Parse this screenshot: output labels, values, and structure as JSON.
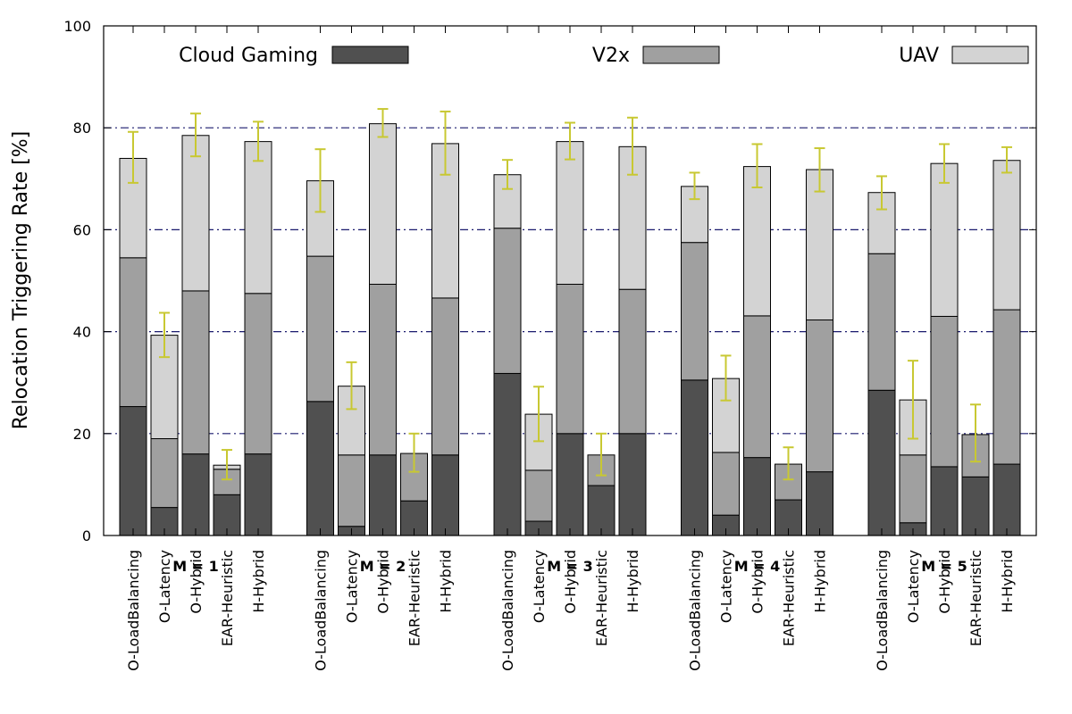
{
  "chart_data": {
    "type": "bar",
    "stacked": true,
    "title": "",
    "xlabel": "",
    "ylabel": "Relocation Triggering Rate [%]",
    "ylim": [
      0,
      100
    ],
    "yticks": [
      "0",
      "20",
      "40",
      "60",
      "80",
      "100"
    ],
    "grid": "horizontal dash-dot at 20, 40, 60, 80",
    "legend_placement": "top",
    "groups": [
      "M = 1",
      "M = 2",
      "M = 3",
      "M = 4",
      "M = 5"
    ],
    "categories": [
      "O-LoadBalancing",
      "O-Latency",
      "O-Hybrid",
      "EAR-Heuristic",
      "H-Hybrid"
    ],
    "series": [
      {
        "name": "Cloud Gaming",
        "color": "#505050",
        "values": [
          [
            25.3,
            5.5,
            16.0,
            8.0,
            16.0
          ],
          [
            26.3,
            1.8,
            15.8,
            6.8,
            15.8
          ],
          [
            31.8,
            2.8,
            20.0,
            9.8,
            20.0
          ],
          [
            30.5,
            4.0,
            15.3,
            7.0,
            12.5
          ],
          [
            28.5,
            2.5,
            13.5,
            11.5,
            14.0
          ]
        ]
      },
      {
        "name": "V2x",
        "color": "#a0a0a0",
        "values": [
          [
            29.2,
            13.5,
            32.0,
            5.0,
            31.5
          ],
          [
            28.5,
            14.0,
            33.5,
            9.3,
            30.8
          ],
          [
            28.5,
            10.0,
            29.3,
            6.0,
            28.3
          ],
          [
            27.0,
            12.3,
            27.8,
            7.0,
            29.8
          ],
          [
            26.8,
            13.3,
            29.5,
            8.3,
            30.3
          ]
        ]
      },
      {
        "name": "UAV",
        "color": "#d3d3d3",
        "values": [
          [
            19.5,
            20.3,
            30.5,
            0.8,
            29.8
          ],
          [
            14.8,
            13.5,
            31.5,
            0.0,
            30.3
          ],
          [
            10.5,
            11.0,
            28.0,
            0.0,
            28.0
          ],
          [
            11.0,
            14.5,
            29.3,
            0.0,
            29.5
          ],
          [
            12.0,
            10.8,
            30.0,
            0.0,
            29.3
          ]
        ]
      }
    ],
    "error_bars": {
      "color": "#c8c832",
      "ranges": [
        [
          [
            69.2,
            79.2
          ],
          [
            35.0,
            43.7
          ],
          [
            74.4,
            82.8
          ],
          [
            11.0,
            16.8
          ],
          [
            73.5,
            81.2
          ]
        ],
        [
          [
            63.5,
            75.8
          ],
          [
            24.8,
            34.0
          ],
          [
            78.2,
            83.7
          ],
          [
            12.5,
            20.0
          ],
          [
            70.8,
            83.2
          ]
        ],
        [
          [
            68.0,
            73.7
          ],
          [
            18.5,
            29.2
          ],
          [
            73.8,
            81.0
          ],
          [
            11.8,
            20.0
          ],
          [
            70.8,
            82.0
          ]
        ],
        [
          [
            66.0,
            71.2
          ],
          [
            26.5,
            35.3
          ],
          [
            68.3,
            76.8
          ],
          [
            11.0,
            17.3
          ],
          [
            67.5,
            76.0
          ]
        ],
        [
          [
            64.0,
            70.5
          ],
          [
            19.0,
            34.3
          ],
          [
            69.2,
            76.8
          ],
          [
            14.5,
            25.7
          ],
          [
            71.2,
            76.2
          ]
        ]
      ]
    }
  }
}
